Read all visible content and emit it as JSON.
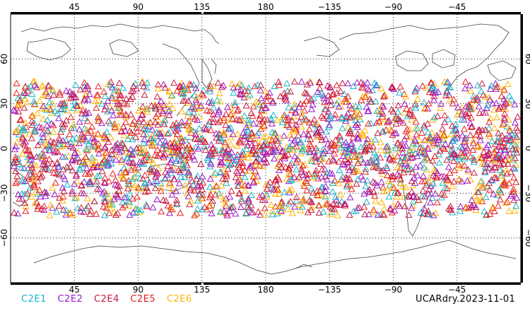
{
  "map": {
    "top_lon_ticks": [
      "45",
      "90",
      "135",
      "180",
      "−135",
      "−90",
      "−45"
    ],
    "bottom_lon_ticks": [
      "45",
      "90",
      "135",
      "180",
      "−135",
      "−90",
      "−45"
    ],
    "left_lat_ticks": [
      "60",
      "30",
      "0",
      "−30",
      "−60"
    ],
    "right_lat_ticks": [
      "60",
      "30",
      "0",
      "−30",
      "−60"
    ]
  },
  "legend": [
    {
      "label": "C2E1",
      "color": "#18b4c8"
    },
    {
      "label": "C2E2",
      "color": "#9a18c8"
    },
    {
      "label": "C2E4",
      "color": "#c8183c"
    },
    {
      "label": "C2E5",
      "color": "#e61e1e"
    },
    {
      "label": "C2E6",
      "color": "#ffb400"
    }
  ],
  "stamp": "UCARdry.2023-11-01",
  "observations": {
    "marker": "triangle",
    "lat_range": [
      -45,
      45
    ],
    "mission_colors": [
      "#18b4c8",
      "#9a18c8",
      "#c8183c",
      "#e61e1e",
      "#ffb400"
    ]
  }
}
